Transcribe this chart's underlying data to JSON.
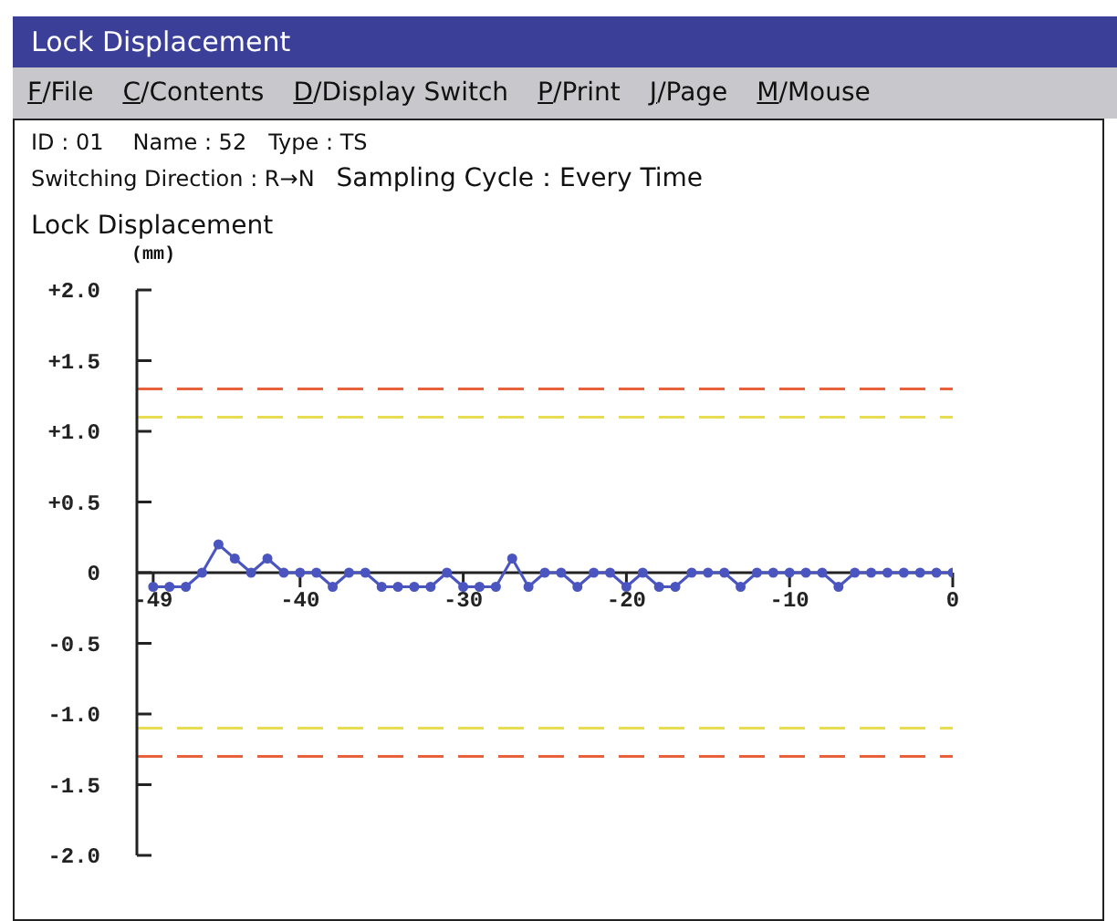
{
  "chart_data": {
    "type": "line",
    "title": "Lock Displacement",
    "ylabel": "(mm)",
    "annotations": [
      "Lock Displacement",
      "F/File",
      "C/Contents",
      "D/Display Switch",
      "P/Print",
      "J/Page",
      "M/Mouse",
      "ID : 01",
      "Name : 52",
      "Type : TS",
      "Switching Direction : R→N",
      "Sampling Cycle：Every Time"
    ],
    "x": [
      -49,
      -48,
      -47,
      -46,
      -45,
      -44,
      -43,
      -42,
      -41,
      -40,
      -39,
      -38,
      -37,
      -36,
      -35,
      -34,
      -33,
      -32,
      -31,
      -30,
      -29,
      -28,
      -27,
      -26,
      -25,
      -24,
      -23,
      -22,
      -21,
      -20,
      -19,
      -18,
      -17,
      -16,
      -15,
      -14,
      -13,
      -12,
      -11,
      -10,
      -9,
      -8,
      -7,
      -6,
      -5,
      -4,
      -3,
      -2,
      -1,
      0
    ],
    "series": [
      {
        "color": "#4a55c0",
        "values": [
          -0.1,
          -0.1,
          -0.1,
          0,
          0.2,
          0.1,
          0,
          0.1,
          0,
          0,
          0,
          -0.1,
          0,
          0,
          -0.1,
          -0.1,
          -0.1,
          -0.1,
          0,
          -0.1,
          -0.1,
          -0.1,
          0.1,
          -0.1,
          0,
          0,
          -0.1,
          0,
          0,
          -0.1,
          0,
          -0.1,
          -0.1,
          0,
          0,
          0,
          -0.1,
          0,
          0,
          0,
          0,
          0,
          -0.1,
          0,
          0,
          0,
          0,
          0,
          0,
          0
        ]
      }
    ],
    "xlim": [
      -50,
      0
    ],
    "xticks": [
      -49,
      -40,
      -30,
      -20,
      -10,
      0
    ],
    "ylim": [
      -2,
      2
    ],
    "yticks": [
      {
        "value": 2,
        "label": "+2.0"
      },
      {
        "value": 1.5,
        "label": "+1.5"
      },
      {
        "value": 1,
        "label": "+1.0"
      },
      {
        "value": 0.5,
        "label": "+0.5"
      },
      {
        "value": 0,
        "label": "0"
      },
      {
        "value": -0.5,
        "label": "-0.5"
      },
      {
        "value": -1,
        "label": "-1.0"
      },
      {
        "value": -1.5,
        "label": "-1.5"
      },
      {
        "value": -2,
        "label": "-2.0"
      }
    ],
    "ref_lines": [
      {
        "axis": "y",
        "value": 1.3,
        "color": "#e8603c",
        "line_style": "dashed"
      },
      {
        "axis": "y",
        "value": 1.1,
        "color": "#e8dc50",
        "line_style": "dashed"
      },
      {
        "axis": "y",
        "value": -1.1,
        "color": "#e8dc50",
        "line_style": "dashed"
      },
      {
        "axis": "y",
        "value": -1.3,
        "color": "#e8603c",
        "line_style": "dashed"
      }
    ],
    "grid": false,
    "legend": false,
    "marker": "circle",
    "line_style": "solid"
  }
}
